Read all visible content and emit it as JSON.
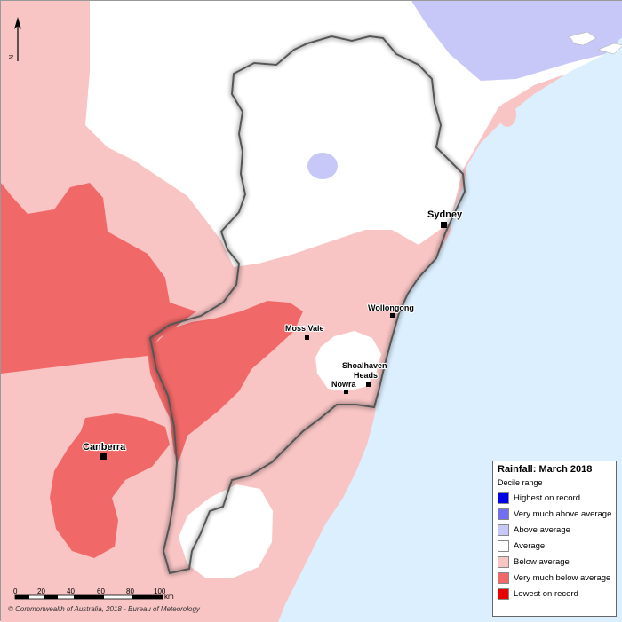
{
  "legend": {
    "title": "Rainfall: March 2018",
    "subtitle": "Decile range",
    "items": [
      {
        "label": "Highest on record",
        "color": "#0000e6"
      },
      {
        "label": "Very much above average",
        "color": "#7070f0"
      },
      {
        "label": "Above average",
        "color": "#c8c8f8"
      },
      {
        "label": "Average",
        "color": "#ffffff"
      },
      {
        "label": "Below average",
        "color": "#f8c4c4"
      },
      {
        "label": "Very much below average",
        "color": "#f06868"
      },
      {
        "label": "Lowest on record",
        "color": "#e80000"
      }
    ]
  },
  "cities": {
    "sydney": "Sydney",
    "wollongong": "Wollongong",
    "moss_vale": "Moss Vale",
    "shoalhaven_line1": "Shoalhaven",
    "shoalhaven_line2": "Heads",
    "nowra": "Nowra",
    "canberra": "Canberra"
  },
  "scale_bar": {
    "ticks": [
      "0",
      "20",
      "40",
      "60",
      "80",
      "100"
    ],
    "unit": "km"
  },
  "north_arrow": "N",
  "copyright": "© Commonwealth of Australia, 2018 - Bureau of Meteorology",
  "colors": {
    "ocean": "#dcefff",
    "land_below": "#f8c4c4",
    "land_very_below": "#f06868",
    "land_average": "#ffffff",
    "land_above": "#c8c8f8"
  }
}
